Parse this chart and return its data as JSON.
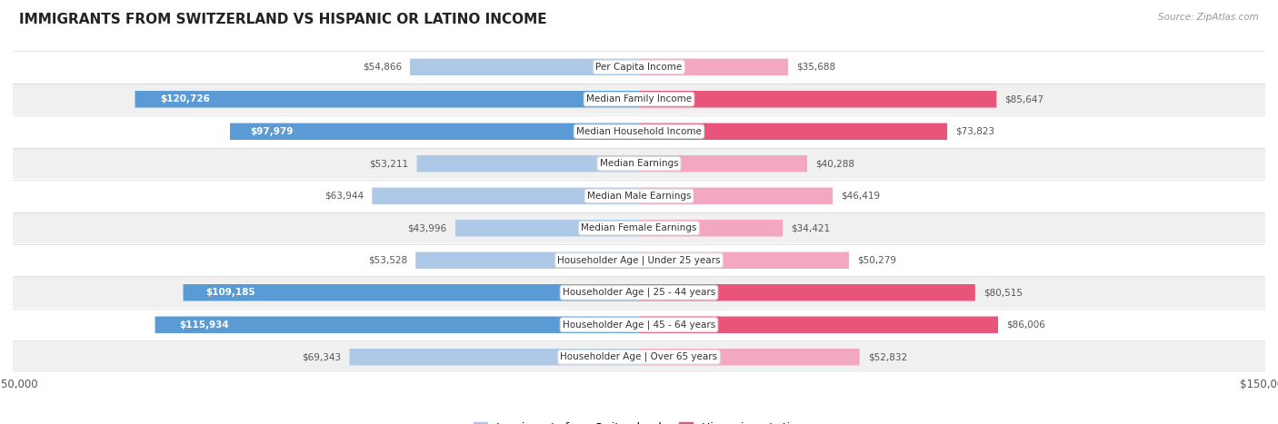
{
  "title": "IMMIGRANTS FROM SWITZERLAND VS HISPANIC OR LATINO INCOME",
  "source": "Source: ZipAtlas.com",
  "categories": [
    "Per Capita Income",
    "Median Family Income",
    "Median Household Income",
    "Median Earnings",
    "Median Male Earnings",
    "Median Female Earnings",
    "Householder Age | Under 25 years",
    "Householder Age | 25 - 44 years",
    "Householder Age | 45 - 64 years",
    "Householder Age | Over 65 years"
  ],
  "swiss_values": [
    54866,
    120726,
    97979,
    53211,
    63944,
    43996,
    53528,
    109185,
    115934,
    69343
  ],
  "hispanic_values": [
    35688,
    85647,
    73823,
    40288,
    46419,
    34421,
    50279,
    80515,
    86006,
    52832
  ],
  "swiss_color_light": "#aec9e8",
  "swiss_color_dark": "#5b9bd5",
  "hispanic_color_dark": "#e8547a",
  "hispanic_color_light": "#f4a7c0",
  "max_val": 150000,
  "swiss_label": "Immigrants from Switzerland",
  "hispanic_label": "Hispanic or Latino",
  "row_colors": [
    "#ffffff",
    "#f0f0f0"
  ],
  "label_threshold": 80000,
  "hispanic_dark_threshold": 60000
}
